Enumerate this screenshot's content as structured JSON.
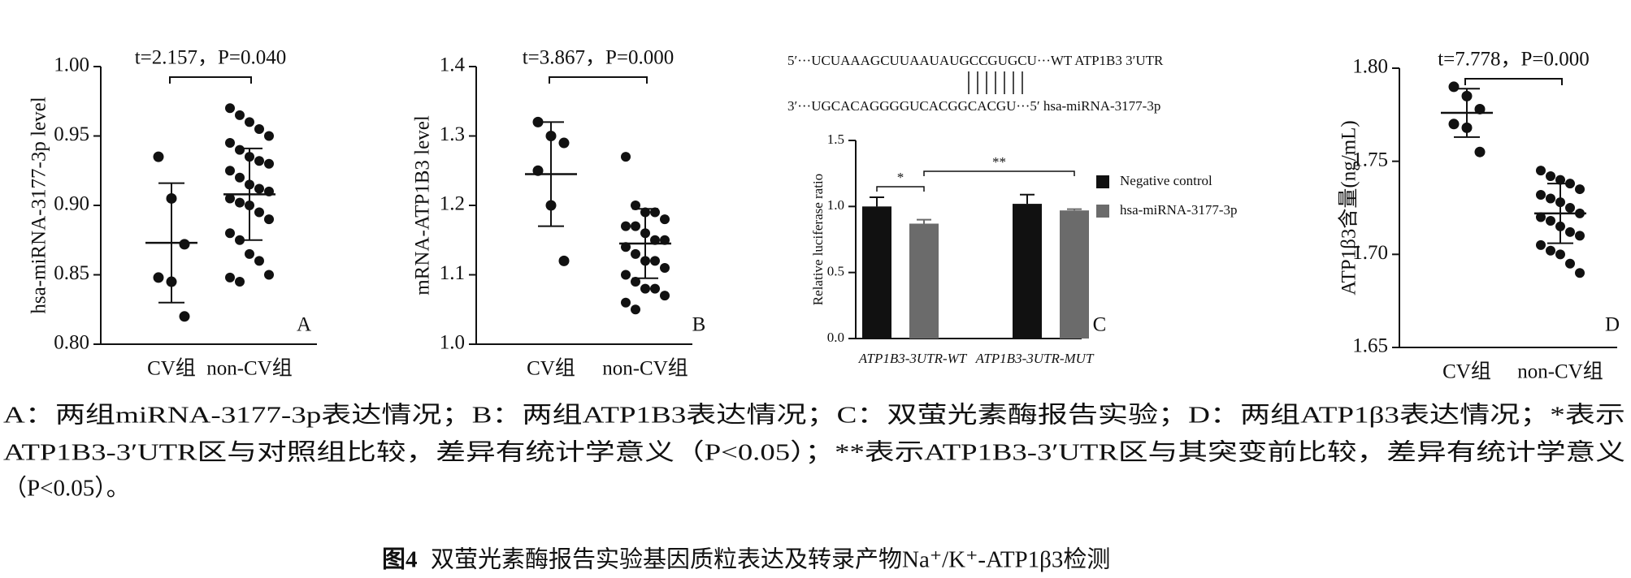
{
  "chart_data": [
    {
      "type": "dotplot",
      "ylabel": "hsa-miRNA-3177-3p level",
      "annotation": "t=2.157，P=0.040",
      "label": "A",
      "ylim": [
        0.8,
        1.0
      ],
      "yticks": [
        {
          "value": 0.8,
          "label": "0.80"
        },
        0.85,
        {
          "value": 0.9,
          "label": "0.90"
        },
        0.95,
        {
          "value": 1,
          "label": "1.00"
        }
      ],
      "categories": [
        "CV组",
        "non-CV组"
      ],
      "groups": [
        {
          "values": [
            0.935,
            0.905,
            0.872,
            0.848,
            0.845,
            0.82
          ],
          "mean": 0.873,
          "sd": 0.043
        },
        {
          "values": [
            0.97,
            0.965,
            0.96,
            0.955,
            0.95,
            0.945,
            0.94,
            0.935,
            0.932,
            0.93,
            0.925,
            0.92,
            0.915,
            0.912,
            0.91,
            0.905,
            0.902,
            0.9,
            0.895,
            0.89,
            0.88,
            0.875,
            0.865,
            0.86,
            0.85,
            0.848,
            0.845
          ],
          "mean": 0.908,
          "sd": 0.033
        }
      ]
    },
    {
      "type": "dotplot",
      "ylabel": "mRNA-ATP1B3 level",
      "annotation": "t=3.867，P=0.000",
      "label": "B",
      "ylim": [
        1.0,
        1.4
      ],
      "yticks": [
        {
          "value": 1,
          "label": "1.0"
        },
        1.1,
        1.2,
        1.3,
        1.4
      ],
      "categories": [
        "CV组",
        "non-CV组"
      ],
      "groups": [
        {
          "values": [
            1.32,
            1.3,
            1.29,
            1.25,
            1.2,
            1.12
          ],
          "mean": 1.245,
          "sd": 0.075
        },
        {
          "values": [
            1.27,
            1.2,
            1.19,
            1.19,
            1.18,
            1.17,
            1.17,
            1.16,
            1.15,
            1.15,
            1.14,
            1.13,
            1.12,
            1.12,
            1.11,
            1.1,
            1.09,
            1.08,
            1.08,
            1.07,
            1.06,
            1.05
          ],
          "mean": 1.145,
          "sd": 0.05
        }
      ]
    },
    {
      "type": "bar",
      "ylabel": "Relative luciferase ratio",
      "label": "C",
      "sequences": [
        "5′···UCUAAAGCUUAAUAUGCCGUGCU···WT ATP1B3 3′UTR",
        "3′···UGCACAGGGGUCACGGCACGU···5′ hsa-miRNA-3177-3p"
      ],
      "annotations": [
        "*",
        "**"
      ],
      "ylim": [
        0,
        1.5
      ],
      "yticks": [
        {
          "value": 0,
          "label": "0.0"
        },
        0.5,
        {
          "value": 1,
          "label": "1.0"
        },
        1.5
      ],
      "categories": [
        "ATP1B3-3UTR-WT",
        "ATP1B3-3UTR-MUT"
      ],
      "series": [
        {
          "name": "Negative control",
          "color": "#111111",
          "values": [
            1.0,
            1.02
          ],
          "errors": [
            0.07,
            0.07
          ]
        },
        {
          "name": "hsa-miRNA-3177-3p",
          "color": "#6b6b6b",
          "values": [
            0.87,
            0.97
          ],
          "errors": [
            0.03,
            0.01
          ]
        }
      ]
    },
    {
      "type": "dotplot",
      "ylabel": "ATP1β3含量(ng/mL)",
      "annotation": "t=7.778，P=0.000",
      "label": "D",
      "ylim": [
        1.65,
        1.8
      ],
      "yticks": [
        1.65,
        {
          "value": 1.7,
          "label": "1.70"
        },
        1.75,
        {
          "value": 1.8,
          "label": "1.80"
        }
      ],
      "categories": [
        "CV组",
        "non-CV组"
      ],
      "groups": [
        {
          "values": [
            1.79,
            1.785,
            1.778,
            1.77,
            1.768,
            1.755
          ],
          "mean": 1.776,
          "sd": 0.013
        },
        {
          "values": [
            1.745,
            1.742,
            1.74,
            1.738,
            1.735,
            1.732,
            1.73,
            1.728,
            1.725,
            1.722,
            1.72,
            1.718,
            1.715,
            1.712,
            1.71,
            1.705,
            1.702,
            1.7,
            1.695,
            1.69
          ],
          "mean": 1.722,
          "sd": 0.016
        }
      ]
    }
  ],
  "caption": {
    "lines": [
      "A：两组miRNA-3177-3p表达情况；B：两组ATP1B3表达情况；C：双萤光素酶报告实验；D：两组ATP1β3表达情况；*表示",
      "ATP1B3-3′UTR区与对照组比较，差异有统计学意义（P<0.05）；**表示ATP1B3-3′UTR区与其突变前比较，差异有统计学意义",
      "（P<0.05）。"
    ],
    "figure_label": "图4",
    "title": "双萤光素酶报告实验基因质粒表达及转录产物Na⁺/K⁺-ATP1β3检测"
  }
}
